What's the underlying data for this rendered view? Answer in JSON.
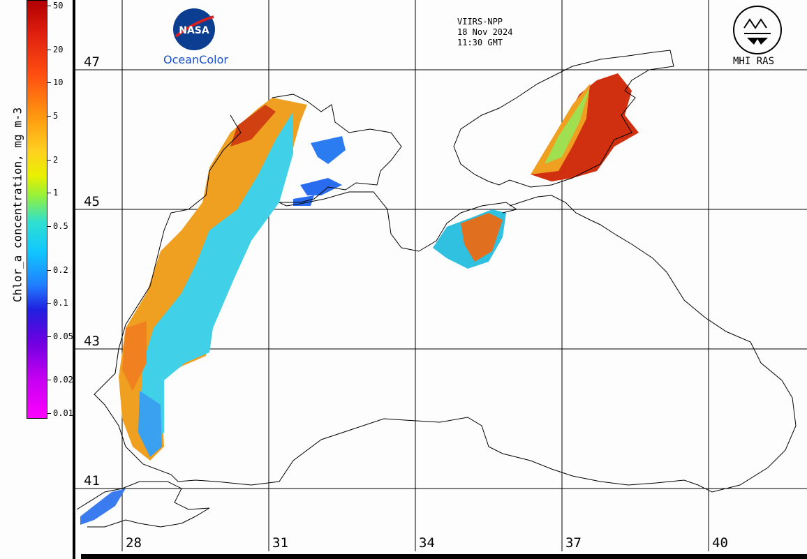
{
  "colorbar": {
    "title": "Chlor_a concentration, mg m-3",
    "ticks": [
      "50",
      "20",
      "10",
      "5",
      "2",
      "1",
      "0.5",
      "0.2",
      "0.1",
      "0.05",
      "0.02",
      "0.01"
    ]
  },
  "lat_labels": [
    "47",
    "45",
    "43",
    "41"
  ],
  "lon_labels": [
    "28",
    "31",
    "34",
    "37",
    "40"
  ],
  "sat": {
    "sensor": "VIIRS-NPP",
    "date": "18 Nov 2024",
    "time": "11:30 GMT"
  },
  "logos": {
    "nasa": "NASA",
    "oceancolor": "OceanColor",
    "mhi": "MHI RAS"
  },
  "colors": {
    "high": "#c8280a",
    "mid": "#f5a020",
    "low": "#40d8e8",
    "vlow": "#3a6cf0",
    "land": "#fdfdfd"
  }
}
